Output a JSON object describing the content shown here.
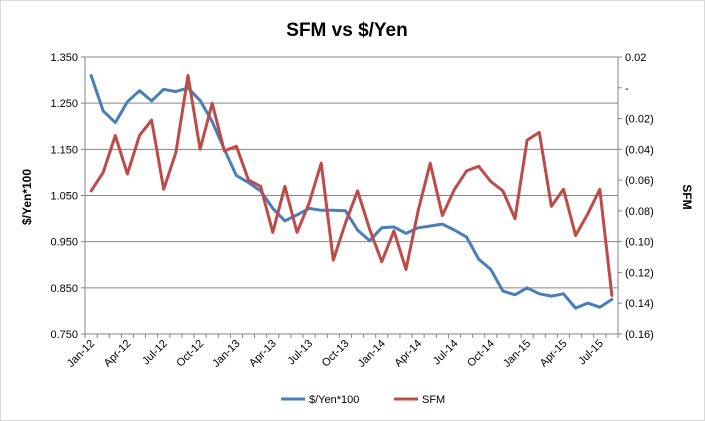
{
  "chart_data": {
    "type": "line",
    "title": "SFM vs $/Yen",
    "ylabel": "$/Yen*100",
    "y2label": "SFM",
    "ylim": [
      0.75,
      1.35
    ],
    "y2lim": [
      -0.16,
      0.02
    ],
    "yticks": [
      "1.350",
      "1.250",
      "1.150",
      "1.050",
      "0.950",
      "0.850",
      "0.750"
    ],
    "y2ticks": [
      "0.02",
      "-",
      "(0.02)",
      "(0.04)",
      "(0.06)",
      "(0.08)",
      "(0.10)",
      "(0.12)",
      "(0.14)",
      "(0.16)"
    ],
    "grid": true,
    "legend": "bottom",
    "categories": [
      "Jan-12",
      "Feb-12",
      "Mar-12",
      "Apr-12",
      "May-12",
      "Jun-12",
      "Jul-12",
      "Aug-12",
      "Sep-12",
      "Oct-12",
      "Nov-12",
      "Dec-12",
      "Jan-13",
      "Feb-13",
      "Mar-13",
      "Apr-13",
      "May-13",
      "Jun-13",
      "Jul-13",
      "Aug-13",
      "Sep-13",
      "Oct-13",
      "Nov-13",
      "Dec-13",
      "Jan-14",
      "Feb-14",
      "Mar-14",
      "Apr-14",
      "May-14",
      "Jun-14",
      "Jul-14",
      "Aug-14",
      "Sep-14",
      "Oct-14",
      "Nov-14",
      "Dec-14",
      "Jan-15",
      "Feb-15",
      "Mar-15",
      "Apr-15",
      "May-15",
      "Jun-15",
      "Jul-15",
      "Aug-15"
    ],
    "xticks": [
      "Jan-12",
      "Apr-12",
      "Jul-12",
      "Oct-12",
      "Jan-13",
      "Apr-13",
      "Jul-13",
      "Oct-13",
      "Jan-14",
      "Apr-14",
      "Jul-14",
      "Oct-14",
      "Jan-15",
      "Apr-15",
      "Jul-15"
    ],
    "series": [
      {
        "name": "$/Yen*100",
        "axis": "left",
        "color": "#4a7ebb",
        "values": [
          1.31,
          1.233,
          1.208,
          1.253,
          1.277,
          1.255,
          1.28,
          1.275,
          1.283,
          1.256,
          1.21,
          1.15,
          1.093,
          1.078,
          1.06,
          1.022,
          0.995,
          1.008,
          1.022,
          1.018,
          1.018,
          1.017,
          0.975,
          0.952,
          0.98,
          0.982,
          0.968,
          0.98,
          0.984,
          0.988,
          0.975,
          0.96,
          0.912,
          0.89,
          0.843,
          0.835,
          0.85,
          0.837,
          0.832,
          0.837,
          0.806,
          0.817,
          0.808,
          0.825
        ]
      },
      {
        "name": "SFM",
        "axis": "right",
        "color": "#be4b48",
        "values": [
          -0.067,
          -0.055,
          -0.031,
          -0.056,
          -0.031,
          -0.021,
          -0.066,
          -0.042,
          0.008,
          -0.04,
          -0.01,
          -0.041,
          -0.038,
          -0.06,
          -0.064,
          -0.094,
          -0.064,
          -0.094,
          -0.075,
          -0.049,
          -0.112,
          -0.088,
          -0.067,
          -0.092,
          -0.113,
          -0.093,
          -0.118,
          -0.08,
          -0.049,
          -0.083,
          -0.066,
          -0.054,
          -0.051,
          -0.061,
          -0.067,
          -0.085,
          -0.034,
          -0.029,
          -0.077,
          -0.066,
          -0.096,
          -0.082,
          -0.066,
          -0.135
        ]
      }
    ]
  }
}
